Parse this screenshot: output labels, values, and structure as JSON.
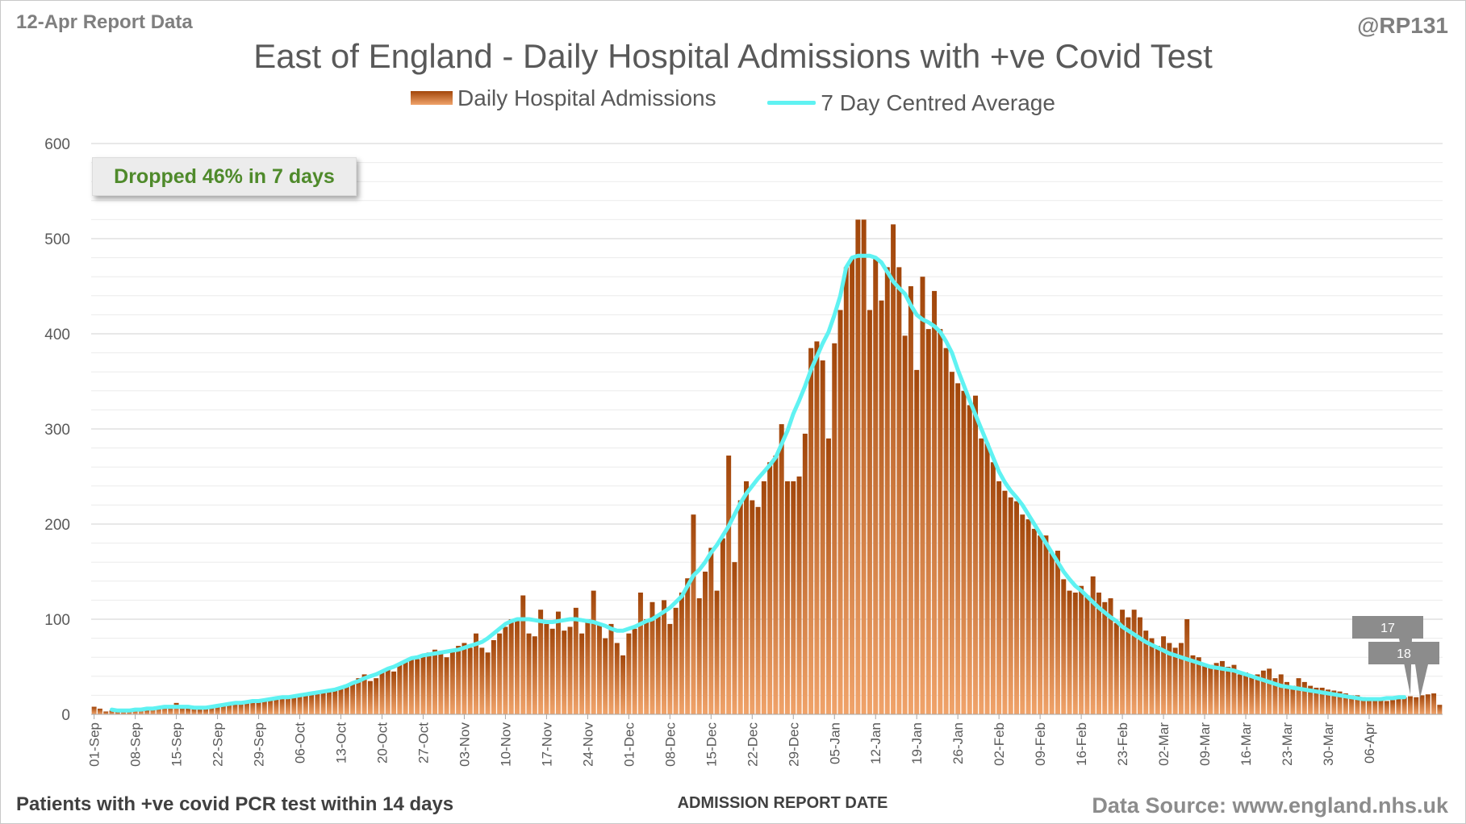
{
  "header": {
    "report_date": "12-Apr Report Data",
    "handle": "@RP131"
  },
  "callout": "Dropped 46% in 7 days",
  "footer": {
    "footnote": "Patients with +ve covid PCR test within 14 days",
    "source": "Data Source: www.england.nhs.uk"
  },
  "colors": {
    "bar_dark": "#a2460a",
    "bar_light": "#f0a36a",
    "avg_line": "#5ff2f2",
    "callout_text": "#4f8a2b"
  },
  "chart_data": {
    "type": "bar",
    "title": "East of England - Daily Hospital Admissions with +ve Covid Test",
    "xlabel": "ADMISSION REPORT DATE",
    "ylabel": "",
    "ylim": [
      0,
      600
    ],
    "yticks": [
      0,
      100,
      200,
      300,
      400,
      500,
      600
    ],
    "grid": true,
    "legend_position": "top-center",
    "x_start": "01-Sep",
    "x_tick_labels": [
      "01-Sep",
      "08-Sep",
      "15-Sep",
      "22-Sep",
      "29-Sep",
      "06-Oct",
      "13-Oct",
      "20-Oct",
      "27-Oct",
      "03-Nov",
      "10-Nov",
      "17-Nov",
      "24-Nov",
      "01-Dec",
      "08-Dec",
      "15-Dec",
      "22-Dec",
      "29-Dec",
      "05-Jan",
      "12-Jan",
      "19-Jan",
      "26-Jan",
      "02-Feb",
      "09-Feb",
      "16-Feb",
      "23-Feb",
      "02-Mar",
      "09-Mar",
      "16-Mar",
      "23-Mar",
      "30-Mar",
      "06-Apr"
    ],
    "series": [
      {
        "name": "Daily Hospital Admissions",
        "type": "bar",
        "values": [
          8,
          6,
          3,
          4,
          3,
          4,
          4,
          5,
          6,
          5,
          7,
          8,
          9,
          8,
          12,
          7,
          6,
          6,
          5,
          6,
          7,
          8,
          10,
          11,
          12,
          12,
          13,
          14,
          13,
          15,
          16,
          17,
          18,
          19,
          18,
          20,
          21,
          22,
          24,
          23,
          25,
          26,
          28,
          30,
          33,
          38,
          42,
          35,
          38,
          45,
          48,
          45,
          52,
          55,
          60,
          58,
          62,
          65,
          68,
          66,
          60,
          68,
          72,
          75,
          70,
          85,
          70,
          65,
          78,
          85,
          92,
          100,
          100,
          125,
          85,
          82,
          110,
          95,
          90,
          108,
          88,
          92,
          112,
          85,
          100,
          130,
          95,
          80,
          95,
          75,
          62,
          85,
          90,
          128,
          100,
          118,
          105,
          120,
          95,
          112,
          128,
          143,
          210,
          122,
          150,
          175,
          130,
          185,
          272,
          160,
          225,
          245,
          225,
          218,
          245,
          265,
          272,
          305,
          245,
          245,
          250,
          295,
          385,
          392,
          372,
          290,
          390,
          425,
          470,
          480,
          520,
          520,
          425,
          480,
          435,
          470,
          515,
          470,
          398,
          450,
          362,
          460,
          405,
          445,
          405,
          385,
          360,
          348,
          340,
          325,
          335,
          290,
          285,
          265,
          245,
          235,
          228,
          224,
          210,
          205,
          195,
          188,
          188,
          170,
          172,
          142,
          130,
          128,
          135,
          125,
          145,
          128,
          118,
          122,
          96,
          110,
          102,
          110,
          102,
          88,
          80,
          72,
          82,
          75,
          70,
          75,
          100,
          62,
          60,
          52,
          52,
          54,
          56,
          50,
          52,
          42,
          44,
          40,
          42,
          46,
          48,
          38,
          42,
          34,
          30,
          38,
          34,
          30,
          28,
          28,
          26,
          25,
          24,
          22,
          20,
          20,
          18,
          17,
          16,
          15,
          14,
          15,
          16,
          18,
          19,
          18,
          20,
          21,
          22,
          10
        ]
      },
      {
        "name": "7 Day Centred Average",
        "type": "line",
        "values": [
          null,
          null,
          null,
          5,
          4,
          4,
          4,
          5,
          5,
          6,
          6,
          7,
          8,
          8,
          8,
          8,
          8,
          7,
          7,
          7,
          8,
          9,
          10,
          11,
          12,
          12,
          13,
          14,
          14,
          15,
          16,
          17,
          18,
          18,
          19,
          20,
          21,
          22,
          23,
          24,
          25,
          26,
          28,
          30,
          33,
          35,
          38,
          40,
          42,
          45,
          48,
          50,
          53,
          56,
          59,
          60,
          62,
          63,
          64,
          65,
          66,
          67,
          68,
          70,
          72,
          74,
          76,
          80,
          85,
          90,
          95,
          98,
          100,
          100,
          100,
          99,
          98,
          97,
          97,
          98,
          99,
          100,
          100,
          99,
          98,
          97,
          95,
          93,
          90,
          88,
          88,
          90,
          92,
          95,
          98,
          100,
          104,
          108,
          112,
          118,
          124,
          135,
          146,
          152,
          160,
          170,
          178,
          188,
          198,
          210,
          222,
          232,
          240,
          248,
          255,
          262,
          270,
          284,
          298,
          316,
          330,
          345,
          362,
          376,
          390,
          402,
          420,
          440,
          470,
          480,
          482,
          482,
          482,
          480,
          475,
          465,
          455,
          448,
          442,
          430,
          420,
          415,
          412,
          408,
          402,
          392,
          380,
          362,
          346,
          330,
          315,
          300,
          285,
          270,
          255,
          244,
          235,
          228,
          220,
          210,
          200,
          190,
          180,
          170,
          160,
          150,
          142,
          135,
          130,
          124,
          118,
          112,
          107,
          102,
          98,
          92,
          88,
          84,
          80,
          76,
          73,
          70,
          67,
          64,
          62,
          60,
          58,
          56,
          54,
          52,
          50,
          49,
          48,
          47,
          46,
          44,
          42,
          40,
          38,
          36,
          34,
          32,
          30,
          29,
          28,
          27,
          26,
          25,
          24,
          23,
          22,
          21,
          20,
          19,
          18,
          17,
          16,
          16,
          16,
          16,
          17,
          17,
          18,
          18,
          null,
          null,
          null
        ]
      }
    ],
    "annotations": [
      "17",
      "18"
    ]
  }
}
